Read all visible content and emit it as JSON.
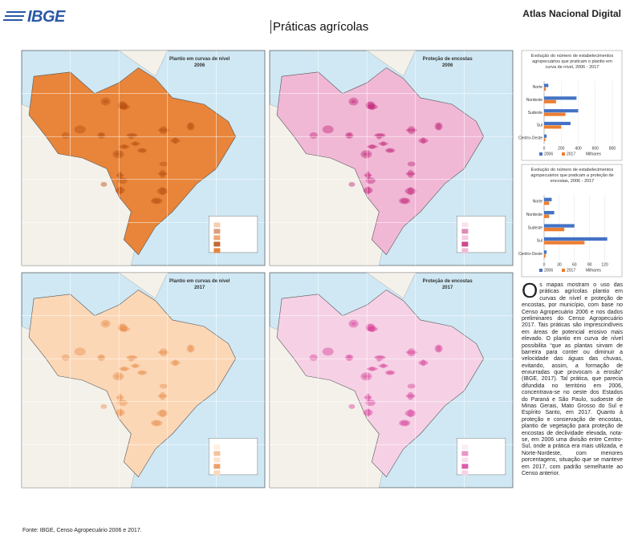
{
  "header": {
    "logo": "IBGE",
    "atlas": "Atlas Nacional Digital",
    "title": "Práticas agrícolas"
  },
  "maps": [
    {
      "title": "Plantio em curvas de nível",
      "year": "2006"
    },
    {
      "title": "Proteção de encostas",
      "year": "2006"
    },
    {
      "title": "Plantio em curvas de nível",
      "year": "2017"
    },
    {
      "title": "Proteção de encostas",
      "year": "2017"
    }
  ],
  "chart_data": [
    {
      "type": "hbar",
      "title": "Evolução do número de estabelecimentos agropecuários que praticam o plantio em curva de nível, 2006 - 2017",
      "categories": [
        "Norte",
        "Nordeste",
        "Sudeste",
        "Sul",
        "Centro-Oeste"
      ],
      "series": [
        {
          "name": "2006",
          "color": "#4472c4",
          "values": [
            50,
            380,
            400,
            310,
            30
          ]
        },
        {
          "name": "2017",
          "color": "#ed7d31",
          "values": [
            20,
            140,
            250,
            200,
            15
          ]
        }
      ],
      "xlim": [
        0,
        800
      ],
      "xticks": [
        0,
        200,
        400,
        600,
        800
      ],
      "unit_label": "Milhares"
    },
    {
      "type": "hbar",
      "title": "Evolução do número de estabelecimentos agropecuários que praticam a proteção de encostas, 2006 - 2017",
      "categories": [
        "Norte",
        "Nordeste",
        "Sudeste",
        "Sul",
        "Centro-Oeste"
      ],
      "series": [
        {
          "name": "2006",
          "color": "#4472c4",
          "values": [
            15,
            20,
            60,
            125,
            5
          ]
        },
        {
          "name": "2017",
          "color": "#ed7d31",
          "values": [
            10,
            10,
            40,
            80,
            3
          ]
        }
      ],
      "xlim": [
        0,
        135
      ],
      "xticks": [
        0,
        30,
        60,
        90,
        120
      ],
      "unit_label": "Milhares"
    }
  ],
  "text": "Os mapas mostram o uso das práticas agrícolas plantio em curvas de nível e proteção de encostas, por município, com base no Censo Agropecuário 2006 e nos dados preliminares do Censo Agropecuário 2017. Tais práticas são imprescindíveis em áreas de potencial erosivo mais elevado. O plantio em curva de nível possibilita “que as plantas sirvam de barreira para conter ou diminuir a velocidade das águas das chuvas, evitando, assim, a formação de enxurradas que provocam a erosão” (IBGE, 2017). Tal prática, que parecia difundida no território em 2006, concentrava-se no oeste dos Estados do Paraná e São Paulo, sudoeste de Minas Gerais, Mato Grosso do Sul e Espírito Santo, em 2017. Quanto à proteção e conservação de encostas, plantio de vegetação para proteção de encostas de declividade elevada, nota-se, em 2006 uma divisão entre Centro-Sul, onde a prática era mais utilizada, e Norte-Nordeste, com menores porcentagens, situação que se manteve em 2017, com padrão semelhante ao Censo anterior.",
  "footer": "Fonte: IBGE, Censo Agropecuário 2006 e 2017."
}
